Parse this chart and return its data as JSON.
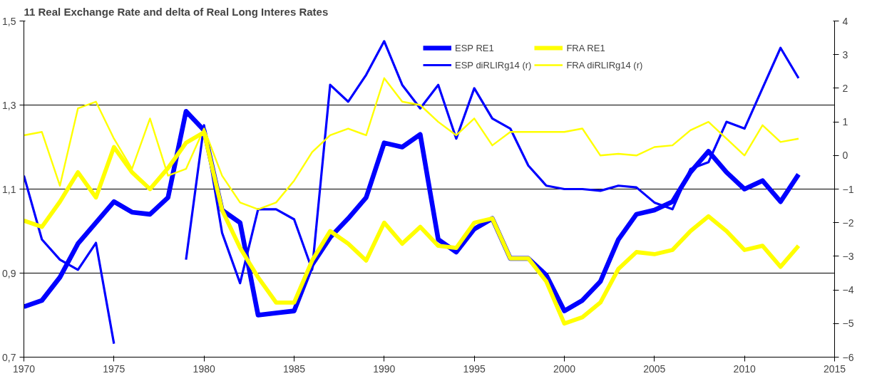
{
  "chart_data": {
    "type": "line",
    "title": "11 Real Exchange Rate and delta of Real Long Interes Rates",
    "x": [
      1970,
      1971,
      1972,
      1973,
      1974,
      1975,
      1976,
      1977,
      1978,
      1979,
      1980,
      1981,
      1982,
      1983,
      1984,
      1985,
      1986,
      1987,
      1988,
      1989,
      1990,
      1991,
      1992,
      1993,
      1994,
      1995,
      1996,
      1997,
      1998,
      1999,
      2000,
      2001,
      2002,
      2003,
      2004,
      2005,
      2006,
      2007,
      2008,
      2009,
      2010,
      2011,
      2012,
      2013
    ],
    "series": [
      {
        "name": "ESP RE1",
        "color": "#0000ff",
        "values": [
          0.82,
          0.835,
          0.89,
          0.97,
          1.02,
          1.07,
          1.045,
          1.04,
          1.08,
          1.285,
          1.24,
          1.05,
          1.02,
          0.8,
          0.805,
          0.81,
          0.92,
          0.985,
          1.03,
          1.08,
          1.21,
          1.2,
          1.23,
          0.98,
          0.95,
          1.005,
          1.03,
          0.935,
          0.935,
          0.895,
          0.81,
          0.835,
          0.88,
          0.98,
          1.04,
          1.05,
          1.07,
          1.14,
          1.19,
          1.14,
          1.1,
          1.12,
          1.07,
          1.135
        ]
      },
      {
        "name": "ESP diRLIRg14 (r)",
        "color": "#0000ff",
        "axis": "y2",
        "values": [
          -0.6,
          -2.5,
          -3.1,
          -3.4,
          -2.6,
          -5.6,
          null,
          null,
          null,
          -3.1,
          0.9,
          -2.3,
          -3.8,
          -1.6,
          -1.6,
          -1.9,
          -3.4,
          2.1,
          1.6,
          2.4,
          3.4,
          2.1,
          1.4,
          2.1,
          0.5,
          2.0,
          1.1,
          0.8,
          -0.3,
          -0.9,
          -1.0,
          -1.0,
          -1.05,
          -0.9,
          -0.95,
          -1.4,
          -1.6,
          -0.4,
          -0.2,
          1.0,
          0.8,
          2.0,
          3.2,
          2.3
        ]
      },
      {
        "name": "FRA RE1",
        "color": "#ffff00",
        "values": [
          1.025,
          1.01,
          1.07,
          1.14,
          1.08,
          1.2,
          1.14,
          1.1,
          1.15,
          1.21,
          1.235,
          1.05,
          0.96,
          0.89,
          0.83,
          0.83,
          0.93,
          1.0,
          0.97,
          0.93,
          1.02,
          0.97,
          1.01,
          0.965,
          0.96,
          1.02,
          1.03,
          0.935,
          0.935,
          0.88,
          0.78,
          0.795,
          0.83,
          0.91,
          0.95,
          0.945,
          0.955,
          1.0,
          1.035,
          1.0,
          0.955,
          0.965,
          0.915,
          0.965
        ]
      },
      {
        "name": "FRA diRLIRg14 (r)",
        "color": "#ffff00",
        "axis": "y2",
        "values": [
          0.6,
          0.7,
          -0.9,
          1.4,
          1.6,
          0.5,
          -0.4,
          1.1,
          -0.6,
          -0.4,
          0.8,
          -0.6,
          -1.4,
          -1.6,
          -1.4,
          -0.75,
          0.1,
          0.6,
          0.8,
          0.6,
          2.3,
          1.6,
          1.5,
          1.0,
          0.6,
          1.1,
          0.3,
          0.7,
          0.7,
          0.7,
          0.7,
          0.8,
          0.0,
          0.05,
          0.0,
          0.25,
          0.3,
          0.75,
          1.0,
          0.5,
          0.0,
          0.9,
          0.4,
          0.5
        ]
      }
    ],
    "xlim": [
      1970,
      2015
    ],
    "xticks": [
      1970,
      1975,
      1980,
      1985,
      1990,
      1995,
      2000,
      2005,
      2010,
      2015
    ],
    "ylim": [
      0.7,
      1.5
    ],
    "yticks": [
      {
        "value": 0.7,
        "label": "0,7"
      },
      {
        "value": 0.9,
        "label": "0,9"
      },
      {
        "value": 1.1,
        "label": "1,1"
      },
      {
        "value": 1.3,
        "label": "1,3"
      },
      {
        "value": 1.5,
        "label": "1,5"
      }
    ],
    "y2lim": [
      -6,
      4
    ],
    "y2ticks": [
      -6,
      -5,
      -4,
      -3,
      -2,
      -1,
      0,
      1,
      2,
      3,
      4
    ],
    "grid": "y",
    "legend": "top right",
    "marker": "none",
    "line_style": "solid"
  }
}
